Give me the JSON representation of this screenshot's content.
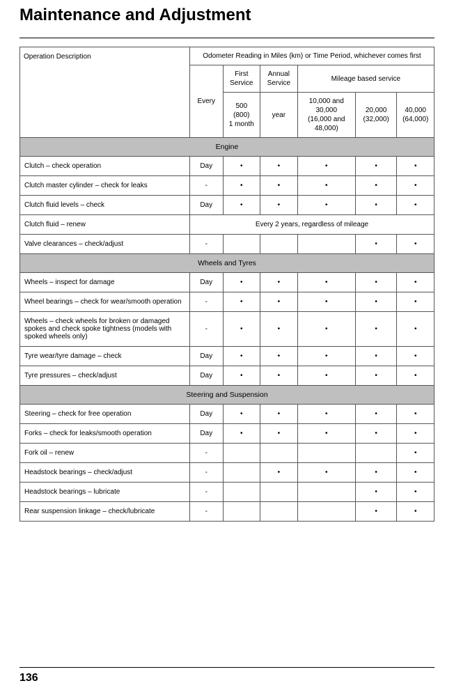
{
  "title": "Maintenance and Adjustment",
  "pageNumber": "136",
  "header": {
    "opDesc": "Operation Description",
    "odometer": "Odometer Reading in Miles (km) or Time Period, whichever comes first",
    "first": "First Service",
    "annual": "Annual Service",
    "mileage": "Mileage based service",
    "every": "Every",
    "col500": "500",
    "col500b": "(800)",
    "col500c": "1 month",
    "colYear": "year",
    "col10k": "10,000 and 30,000",
    "col10kb": "(16,000 and 48,000)",
    "col20k": "20,000",
    "col20kb": "(32,000)",
    "col40k": "40,000",
    "col40kb": "(64,000)"
  },
  "dot": "•",
  "sections": [
    {
      "type": "section",
      "label": "Engine"
    },
    {
      "type": "row",
      "desc": "Clutch – check operation",
      "every": "Day",
      "c": [
        "•",
        "•",
        "•",
        "•",
        "•"
      ]
    },
    {
      "type": "row",
      "desc": "Clutch master cylinder – check for leaks",
      "every": "-",
      "c": [
        "•",
        "•",
        "•",
        "•",
        "•"
      ]
    },
    {
      "type": "row",
      "desc": "Clutch fluid levels – check",
      "every": "Day",
      "c": [
        "•",
        "•",
        "•",
        "•",
        "•"
      ]
    },
    {
      "type": "rowspan",
      "desc": "Clutch fluid – renew",
      "span": "Every 2 years, regardless of mileage"
    },
    {
      "type": "row",
      "desc": "Valve clearances – check/adjust",
      "every": "-",
      "c": [
        "",
        "",
        "",
        "•",
        "•"
      ]
    },
    {
      "type": "section",
      "label": "Wheels and Tyres"
    },
    {
      "type": "row",
      "desc": "Wheels – inspect for damage",
      "every": "Day",
      "c": [
        "•",
        "•",
        "•",
        "•",
        "•"
      ]
    },
    {
      "type": "row",
      "desc": "Wheel bearings – check for wear/smooth operation",
      "every": "-",
      "c": [
        "•",
        "•",
        "•",
        "•",
        "•"
      ]
    },
    {
      "type": "row",
      "desc": "Wheels – check wheels for broken or damaged spokes and check spoke tightness (models with spoked wheels only)",
      "every": "-",
      "c": [
        "•",
        "•",
        "•",
        "•",
        "•"
      ]
    },
    {
      "type": "row",
      "desc": "Tyre wear/tyre damage – check",
      "every": "Day",
      "c": [
        "•",
        "•",
        "•",
        "•",
        "•"
      ]
    },
    {
      "type": "row",
      "desc": "Tyre pressures – check/adjust",
      "every": "Day",
      "c": [
        "•",
        "•",
        "•",
        "•",
        "•"
      ]
    },
    {
      "type": "section",
      "label": "Steering and Suspension"
    },
    {
      "type": "row",
      "desc": "Steering – check for free operation",
      "every": "Day",
      "c": [
        "•",
        "•",
        "•",
        "•",
        "•"
      ]
    },
    {
      "type": "row",
      "desc": "Forks – check for leaks/smooth operation",
      "every": "Day",
      "c": [
        "•",
        "•",
        "•",
        "•",
        "•"
      ]
    },
    {
      "type": "row",
      "desc": "Fork oil – renew",
      "every": "-",
      "c": [
        "",
        "",
        "",
        "",
        "•"
      ]
    },
    {
      "type": "row",
      "desc": "Headstock bearings – check/adjust",
      "every": "-",
      "c": [
        "",
        "•",
        "•",
        "•",
        "•"
      ]
    },
    {
      "type": "row",
      "desc": "Headstock bearings – lubricate",
      "every": "-",
      "c": [
        "",
        "",
        "",
        "•",
        "•"
      ]
    },
    {
      "type": "row",
      "desc": "Rear suspension linkage – check/lubricate",
      "every": "-",
      "c": [
        "",
        "",
        "",
        "•",
        "•"
      ]
    }
  ]
}
